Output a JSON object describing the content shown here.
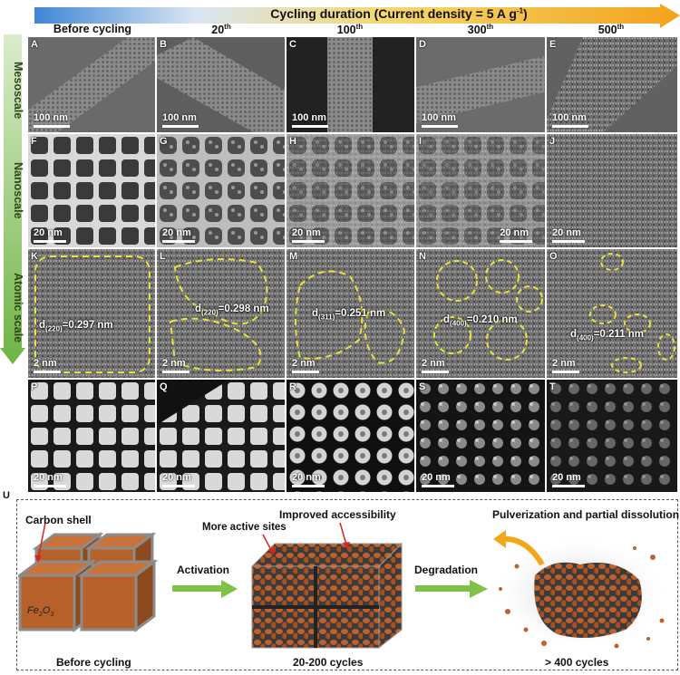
{
  "header": {
    "title": "Cycling  duration (Current density = 5 A g",
    "title_sup": "-1",
    "title_end": ")"
  },
  "rows": {
    "meso": "Mesoscale",
    "nano": "Nanoscale",
    "atomic": "Atomic scale"
  },
  "columns": [
    {
      "main": "Before cycling",
      "sup": ""
    },
    {
      "main": "20",
      "sup": "th"
    },
    {
      "main": "100",
      "sup": "th"
    },
    {
      "main": "300",
      "sup": "th"
    },
    {
      "main": "500",
      "sup": "th"
    }
  ],
  "panel_letters": [
    "A",
    "B",
    "C",
    "D",
    "E",
    "F",
    "G",
    "H",
    "I",
    "J",
    "K",
    "L",
    "M",
    "N",
    "O",
    "P",
    "Q",
    "R",
    "S",
    "T"
  ],
  "scale_bars": {
    "row1": "100 nm",
    "row2": "20 nm",
    "row3": "2 nm",
    "row4": "20 nm"
  },
  "d_spacings": [
    {
      "sub": "(220)",
      "val": "=0.297 nm"
    },
    {
      "sub": "(220)",
      "val": "=0.298 nm"
    },
    {
      "sub": "(311)",
      "val": "=0.251 nm"
    },
    {
      "sub": "(400)",
      "val": "=0.210 nm"
    },
    {
      "sub": "(400)",
      "val": "=0.211 nm"
    }
  ],
  "schematic": {
    "label": "U",
    "carbon_shell": "Carbon shell",
    "fe2o3": "Fe",
    "fe2o3_sub1": "2",
    "fe2o3_mid": "O",
    "fe2o3_sub2": "3",
    "activation": "Activation",
    "degradation": "Degradation",
    "more_active_sites": "More active sites",
    "improved_accessibility": "Improved accessibility",
    "pulverization": "Pulverization and partial dissolution",
    "stage1": "Before cycling",
    "stage2": "20-200 cycles",
    "stage3": "> 400 cycles"
  },
  "colors": {
    "arrow_start": "#4a90d9",
    "arrow_end": "#f5a623",
    "side_arrow": "#8dc26b",
    "cube": "#b8602a",
    "shell": "#8c8c8c",
    "green_arrow": "#7fc24a",
    "yellow_dash": "#e8e33a",
    "orange_arrow": "#f0a818"
  }
}
